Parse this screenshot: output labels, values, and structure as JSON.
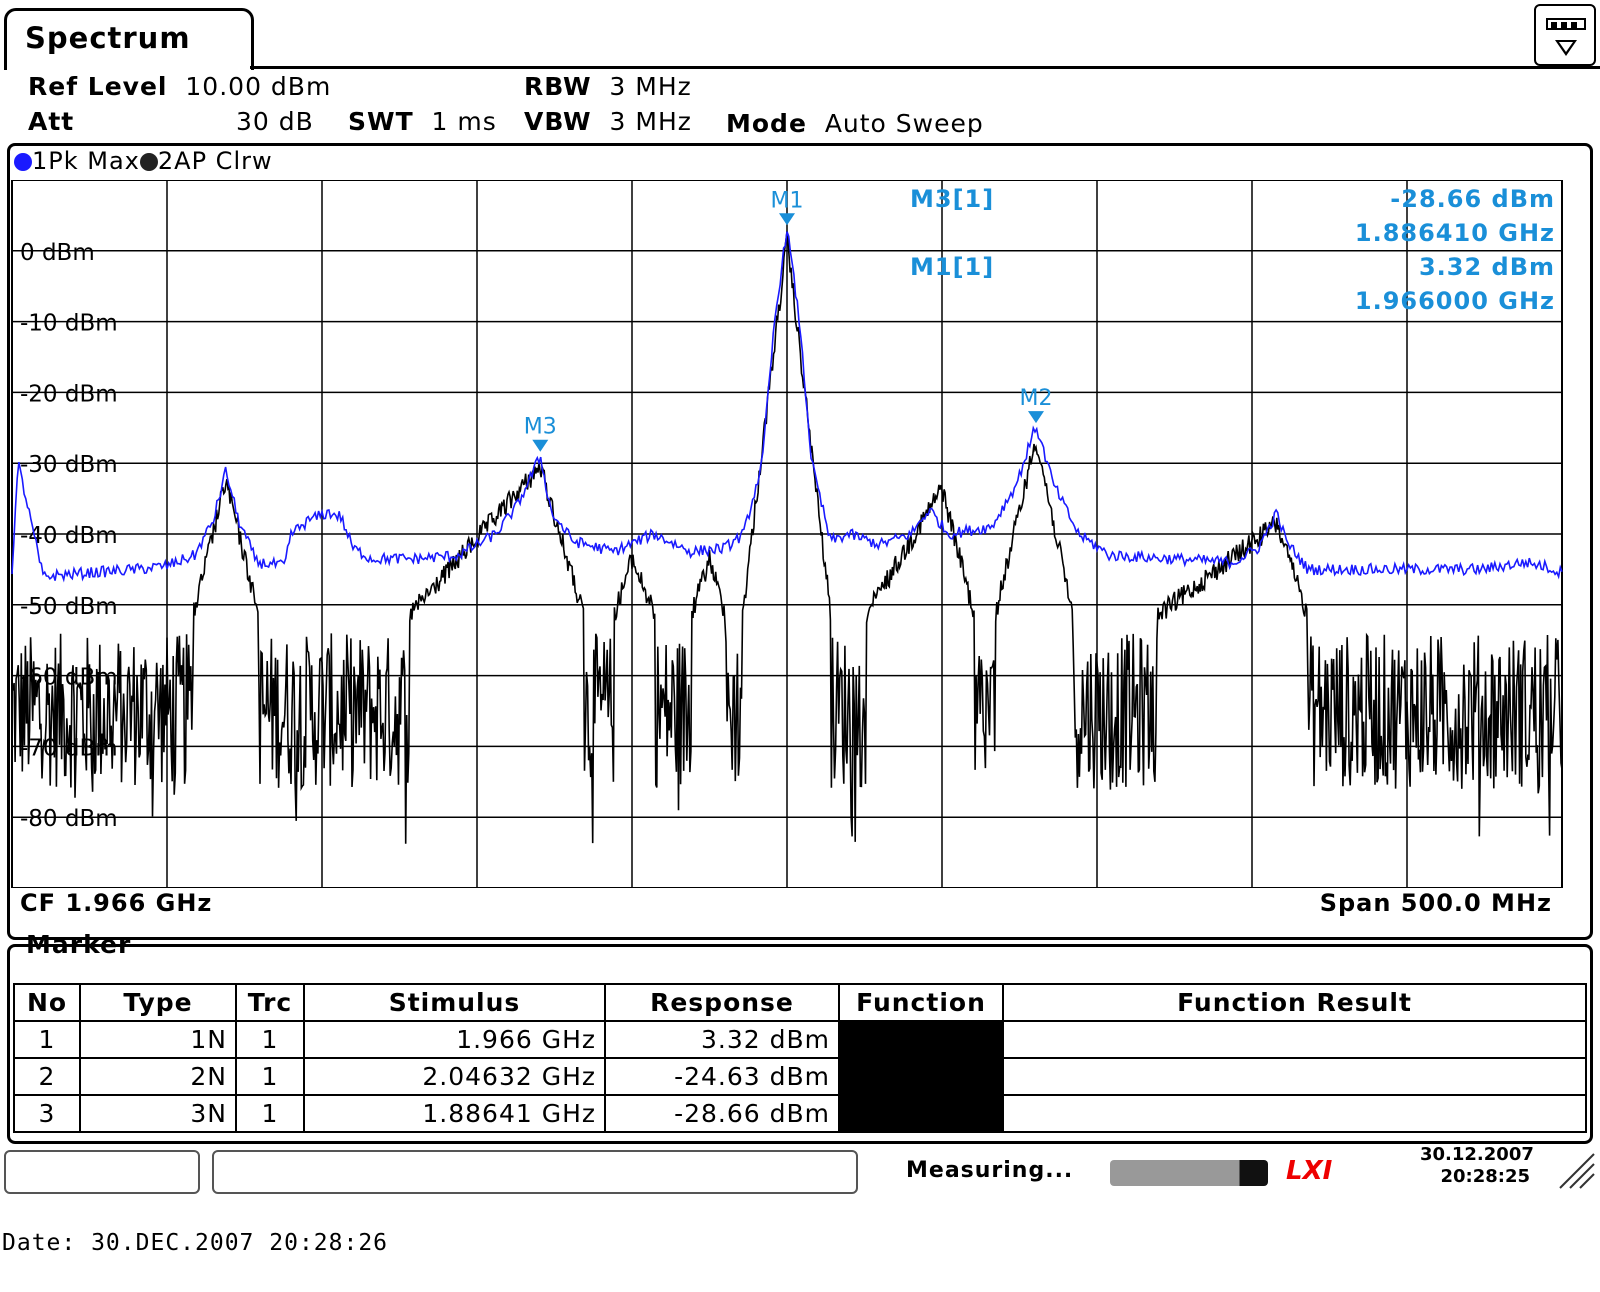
{
  "tab": {
    "title": "Spectrum"
  },
  "settings": {
    "ref_level_label": "Ref Level",
    "ref_level_value": "10.00 dBm",
    "att_label": "Att",
    "att_value": "30 dB",
    "swt_label": "SWT",
    "swt_value": "1 ms",
    "rbw_label": "RBW",
    "rbw_value": "3 MHz",
    "vbw_label": "VBW",
    "vbw_value": "3 MHz",
    "mode_label": "Mode",
    "mode_value": "Auto Sweep"
  },
  "traces_legend": [
    {
      "label": "1Pk Max",
      "color": "#1a1aff"
    },
    {
      "label": "2AP Clrw",
      "color": "#000000"
    }
  ],
  "marker_readout": {
    "m3_label": "M3[1]",
    "m3_level": "-28.66 dBm",
    "m3_freq": "1.886410 GHz",
    "m1_label": "M1[1]",
    "m1_level": "3.32 dBm",
    "m1_freq": "1.966000 GHz",
    "color": "#1a8fd8"
  },
  "footer": {
    "cf": "CF 1.966 GHz",
    "span": "Span 500.0 MHz"
  },
  "chart_data": {
    "type": "line",
    "xlabel": "",
    "ylabel": "",
    "x_range_ghz": [
      1.716,
      2.216
    ],
    "ylim": [
      -90,
      10
    ],
    "y_ticks": [
      "0 dBm",
      "-10 dBm",
      "-20 dBm",
      "-30 dBm",
      "-40 dBm",
      "-50 dBm",
      "-60 dBm",
      "-70 dBm",
      "-80 dBm"
    ],
    "y_tick_values": [
      0,
      -10,
      -20,
      -30,
      -40,
      -50,
      -60,
      -70,
      -80
    ],
    "grid": true,
    "series": [
      {
        "name": "1Pk Max",
        "color": "#1a1aff",
        "points": [
          [
            1.716,
            -45
          ],
          [
            1.718,
            -30
          ],
          [
            1.722,
            -38
          ],
          [
            1.726,
            -46
          ],
          [
            1.74,
            -45.5
          ],
          [
            1.756,
            -45
          ],
          [
            1.766,
            -44.5
          ],
          [
            1.775,
            -43
          ],
          [
            1.781,
            -38
          ],
          [
            1.785,
            -31
          ],
          [
            1.789,
            -38
          ],
          [
            1.795,
            -44
          ],
          [
            1.804,
            -44.5
          ],
          [
            1.806,
            -40
          ],
          [
            1.812,
            -38
          ],
          [
            1.818,
            -37
          ],
          [
            1.822,
            -37.5
          ],
          [
            1.826,
            -42
          ],
          [
            1.832,
            -43.5
          ],
          [
            1.846,
            -43.5
          ],
          [
            1.86,
            -43
          ],
          [
            1.872,
            -40
          ],
          [
            1.879,
            -36
          ],
          [
            1.8864,
            -29
          ],
          [
            1.89,
            -37
          ],
          [
            1.897,
            -41
          ],
          [
            1.91,
            -42.5
          ],
          [
            1.923,
            -40
          ],
          [
            1.935,
            -42.5
          ],
          [
            1.946,
            -42
          ],
          [
            1.952,
            -40
          ],
          [
            1.958,
            -30
          ],
          [
            1.962,
            -10
          ],
          [
            1.966,
            3.32
          ],
          [
            1.97,
            -10
          ],
          [
            1.974,
            -30
          ],
          [
            1.98,
            -41
          ],
          [
            1.986,
            -40
          ],
          [
            1.996,
            -41.5
          ],
          [
            2.006,
            -40
          ],
          [
            2.012,
            -36.5
          ],
          [
            2.018,
            -40
          ],
          [
            2.032,
            -39
          ],
          [
            2.04,
            -33
          ],
          [
            2.04632,
            -24.63
          ],
          [
            2.052,
            -33
          ],
          [
            2.06,
            -40
          ],
          [
            2.07,
            -43
          ],
          [
            2.09,
            -43.5
          ],
          [
            2.11,
            -44
          ],
          [
            2.118,
            -42
          ],
          [
            2.124,
            -37
          ],
          [
            2.127,
            -41
          ],
          [
            2.134,
            -45
          ],
          [
            2.16,
            -45
          ],
          [
            2.19,
            -45
          ],
          [
            2.204,
            -44
          ],
          [
            2.21,
            -44.5
          ],
          [
            2.216,
            -45.5
          ]
        ]
      },
      {
        "name": "2AP Clrw",
        "color": "#000000",
        "noise_floor_dbm": -65,
        "points": [
          [
            1.716,
            -56
          ],
          [
            1.74,
            -57
          ],
          [
            1.77,
            -58
          ],
          [
            1.785,
            -31
          ],
          [
            1.8,
            -58
          ],
          [
            1.83,
            -57
          ],
          [
            1.8864,
            -29
          ],
          [
            1.905,
            -57
          ],
          [
            1.916,
            -42
          ],
          [
            1.93,
            -57
          ],
          [
            1.941,
            -42
          ],
          [
            1.95,
            -56
          ],
          [
            1.966,
            3
          ],
          [
            1.982,
            -57
          ],
          [
            2.016,
            -32
          ],
          [
            2.03,
            -56
          ],
          [
            2.04632,
            -25
          ],
          [
            2.062,
            -58
          ],
          [
            2.124,
            -37
          ],
          [
            2.14,
            -58
          ],
          [
            2.216,
            -58
          ]
        ]
      }
    ],
    "markers": [
      {
        "label": "M1",
        "freq_ghz": 1.966,
        "level_dbm": 3.32
      },
      {
        "label": "M2",
        "freq_ghz": 2.04632,
        "level_dbm": -24.63
      },
      {
        "label": "M3",
        "freq_ghz": 1.88641,
        "level_dbm": -28.66
      }
    ]
  },
  "marker_table": {
    "title": "Marker",
    "headers": [
      "No",
      "Type",
      "Trc",
      "Stimulus",
      "Response",
      "Function",
      "Function Result"
    ],
    "rows": [
      [
        "1",
        "1N",
        "1",
        "1.966 GHz",
        "3.32 dBm",
        "",
        ""
      ],
      [
        "2",
        "2N",
        "1",
        "2.04632 GHz",
        "-24.63 dBm",
        "",
        ""
      ],
      [
        "3",
        "3N",
        "1",
        "1.88641 GHz",
        "-28.66 dBm",
        "",
        ""
      ]
    ]
  },
  "status": {
    "measuring": "Measuring...",
    "lxi": "LXI",
    "date": "30.12.2007",
    "time": "20:28:25"
  },
  "print_footer": "Date: 30.DEC.2007  20:28:26"
}
